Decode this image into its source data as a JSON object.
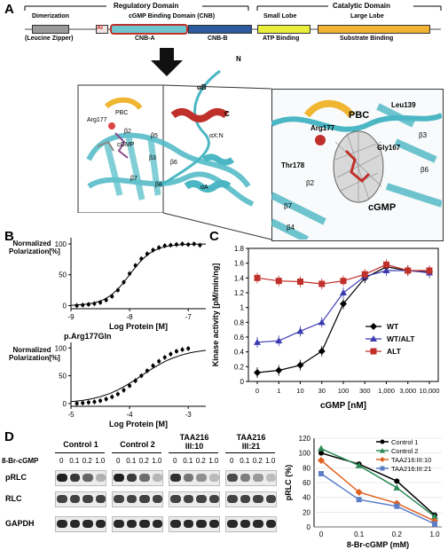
{
  "panel_labels": {
    "a": "A",
    "b": "B",
    "c": "C",
    "d": "D"
  },
  "panelA": {
    "regulatory_domain": "Regulatory Domain",
    "catalytic_domain": "Catalytic Domain",
    "dimerization": "Dimerization",
    "cgmp_binding_domain": "cGMP Binding Domain (CNB)",
    "small_lobe": "Small Lobe",
    "large_lobe": "Large Lobe",
    "ai": "AI",
    "leucine_zipper": "(Leucine Zipper)",
    "cnb_a": "CNB-A",
    "cnb_b": "CNB-B",
    "atp_binding": "ATP Binding",
    "substrate_binding": "Substrate Binding",
    "struct_labels": {
      "N": "N",
      "C": "C",
      "alphaB": "αB",
      "alphaXN": "αX:N",
      "alphaA": "αA",
      "PBC": "PBC",
      "Arg177": "Arg177",
      "cGMP": "cGMP",
      "beta2": "β2",
      "beta3": "β3",
      "beta5": "β5",
      "beta6": "β6",
      "beta7": "β7",
      "beta8": "β8"
    },
    "zoom_labels": {
      "PBC": "PBC",
      "Leu139": "Leu139",
      "Arg177": "Arg177",
      "Gly167": "Gly167",
      "Thr178": "Thr178",
      "cGMP": "cGMP",
      "beta2": "β2",
      "beta3": "β3",
      "beta4": "β4",
      "beta6": "β6",
      "beta7": "β7"
    }
  },
  "panelB": {
    "ylabel": "Normalized Polarization[%]",
    "xlabel": "Log Protein [M]",
    "top": {
      "xticks": [
        "-9",
        "-8",
        "-7"
      ],
      "yticks": [
        "0",
        "50",
        "100"
      ],
      "chart_data": {
        "type": "scatter",
        "xlabel": "Log Protein [M]",
        "ylabel": "Normalized Polarization[%]",
        "xlim": [
          -9,
          -6.7
        ],
        "ylim": [
          -5,
          110
        ],
        "x": [
          -8.9,
          -8.8,
          -8.7,
          -8.6,
          -8.5,
          -8.4,
          -8.3,
          -8.2,
          -8.1,
          -8.0,
          -7.9,
          -7.8,
          -7.7,
          -7.6,
          -7.5,
          -7.4,
          -7.3,
          -7.2,
          -7.1,
          -7.0,
          -6.9,
          -6.8
        ],
        "y": [
          0,
          1,
          2,
          3,
          5,
          9,
          15,
          25,
          38,
          52,
          65,
          76,
          84,
          90,
          94,
          97,
          98,
          99,
          100,
          99,
          100,
          98
        ]
      }
    },
    "bottom": {
      "title": "p.Arg177Gln",
      "xticks": [
        "-5",
        "-4",
        "-3"
      ],
      "yticks": [
        "0",
        "50",
        "100"
      ],
      "chart_data": {
        "type": "scatter",
        "xlabel": "Log Protein [M]",
        "ylabel": "Normalized Polarization[%]",
        "xlim": [
          -5,
          -2.7
        ],
        "ylim": [
          -5,
          110
        ],
        "x": [
          -4.9,
          -4.8,
          -4.7,
          -4.6,
          -4.5,
          -4.4,
          -4.3,
          -4.2,
          -4.1,
          -4.0,
          -3.9,
          -3.8,
          -3.7,
          -3.6,
          -3.5,
          -3.4,
          -3.3,
          -3.2,
          -3.1,
          -3.0
        ],
        "y": [
          0,
          1,
          2,
          3,
          5,
          8,
          12,
          17,
          24,
          32,
          41,
          50,
          59,
          68,
          76,
          83,
          89,
          94,
          97,
          99
        ]
      }
    }
  },
  "panelC": {
    "ylabel": "Kinase activity [pM/min/ng]",
    "xlabel": "cGMP [nM]",
    "legend": [
      "WT",
      "WT/ALT",
      "ALT"
    ],
    "chart_data": {
      "type": "line",
      "categories": [
        "0",
        "1",
        "10",
        "30",
        "100",
        "300",
        "1,000",
        "3,000",
        "10,000"
      ],
      "yticks": [
        "0",
        "0.2",
        "0.4",
        "0.6",
        "0.8",
        "1",
        "1.2",
        "1.4",
        "1.6",
        "1.8"
      ],
      "ylim": [
        0,
        1.8
      ],
      "xlabel": "cGMP [nM]",
      "ylabel": "Kinase activity [pM/min/ng]",
      "series": [
        {
          "name": "WT",
          "color": "#000000",
          "marker": "diamond",
          "values": [
            0.12,
            0.15,
            0.22,
            0.41,
            1.05,
            1.4,
            1.55,
            1.5,
            1.48
          ]
        },
        {
          "name": "WT/ALT",
          "color": "#3b3bb0",
          "marker": "triangle",
          "values": [
            0.53,
            0.55,
            0.68,
            0.8,
            1.2,
            1.42,
            1.5,
            1.5,
            1.47
          ]
        },
        {
          "name": "ALT",
          "color": "#c0302a",
          "marker": "square",
          "values": [
            1.4,
            1.36,
            1.35,
            1.32,
            1.36,
            1.45,
            1.58,
            1.5,
            1.5
          ]
        }
      ]
    }
  },
  "panelD": {
    "blot": {
      "groups": [
        "Control 1",
        "Control 2",
        "TAA216\nIII:10",
        "TAA216\nIII:21"
      ],
      "reagent": "8-Br-cGMP",
      "concentrations": [
        "0",
        "0.1",
        "0.2",
        "1.0"
      ],
      "rows": [
        "pRLC",
        "RLC",
        "GAPDH"
      ]
    },
    "chart": {
      "ylabel": "pRLC (%)",
      "xlabel": "8-Br-cGMP (mM)",
      "chart_data": {
        "type": "line",
        "categories": [
          "0",
          "0.1",
          "0.2",
          "1.0"
        ],
        "yticks": [
          "0",
          "20",
          "40",
          "60",
          "80",
          "100",
          "120"
        ],
        "ylim": [
          0,
          120
        ],
        "xlabel": "8-Br-cGMP (mM)",
        "ylabel": "pRLC (%)",
        "series": [
          {
            "name": "Control 1",
            "color": "#000000",
            "values": [
              100,
              85,
              62,
              16
            ]
          },
          {
            "name": "Control 2",
            "color": "#2e8b57",
            "values": [
              106,
              83,
              53,
              14
            ]
          },
          {
            "name": "TAA216:III:10",
            "color": "#e06020",
            "values": [
              90,
              47,
              32,
              8
            ]
          },
          {
            "name": "TAA216:III:21",
            "color": "#5b7fc7",
            "values": [
              72,
              37,
              28,
              4
            ]
          }
        ]
      }
    }
  }
}
